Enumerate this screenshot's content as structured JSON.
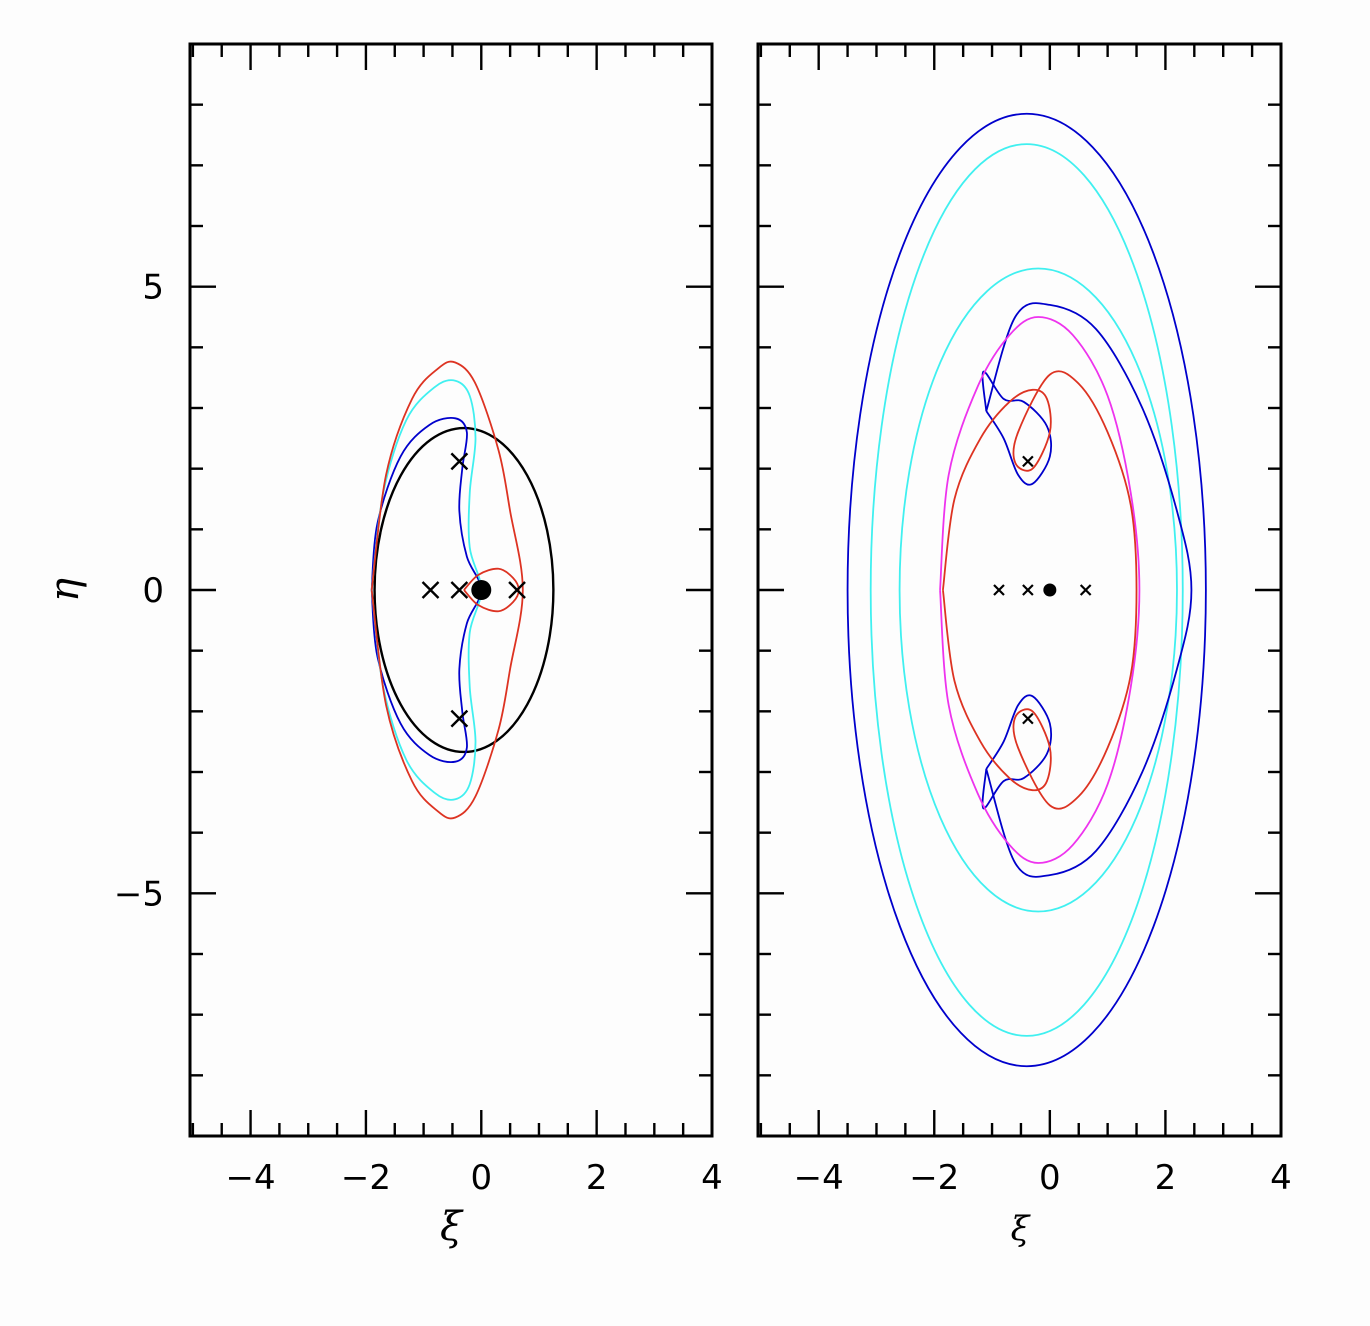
{
  "chart_data": [
    {
      "type": "line",
      "panel": "left",
      "xlabel": "ξ",
      "ylabel": "η",
      "xlim": [
        -5.05,
        4.0
      ],
      "ylim": [
        -9.0,
        9.0
      ],
      "x_ticks": [
        -4,
        -2,
        0,
        2,
        4
      ],
      "x_tick_labels": [
        "−4",
        "−2",
        "0",
        "2",
        "4"
      ],
      "y_ticks": [
        -5,
        0,
        5
      ],
      "y_tick_labels": [
        "−5",
        "0",
        "5"
      ],
      "series": [
        {
          "color": "#000000",
          "kind": "ellipse",
          "center": [
            -0.3,
            0.0
          ],
          "semi_axes": [
            1.55,
            2.67
          ]
        },
        {
          "color": "#0000cc",
          "kind": "critical-curve",
          "points": [
            [
              -1.9,
              0
            ],
            [
              -1.8,
              1.1
            ],
            [
              -1.4,
              2.2
            ],
            [
              -0.9,
              2.72
            ],
            [
              -0.45,
              2.83
            ],
            [
              -0.25,
              2.6
            ],
            [
              -0.33,
              2.0
            ],
            [
              -0.38,
              1.3
            ],
            [
              -0.25,
              0.55
            ],
            [
              0.0,
              0.0
            ],
            [
              -0.25,
              -0.55
            ],
            [
              -0.38,
              -1.3
            ],
            [
              -0.33,
              -2.0
            ],
            [
              -0.25,
              -2.6
            ],
            [
              -0.45,
              -2.83
            ],
            [
              -0.9,
              -2.72
            ],
            [
              -1.4,
              -2.2
            ],
            [
              -1.8,
              -1.1
            ],
            [
              -1.9,
              0
            ]
          ]
        },
        {
          "color": "#40f0f0",
          "kind": "critical-curve",
          "points": [
            [
              -1.9,
              0
            ],
            [
              -1.7,
              1.6
            ],
            [
              -1.3,
              2.8
            ],
            [
              -0.8,
              3.35
            ],
            [
              -0.45,
              3.45
            ],
            [
              -0.2,
              3.2
            ],
            [
              -0.1,
              2.5
            ],
            [
              -0.2,
              1.6
            ],
            [
              -0.2,
              0.7
            ],
            [
              0.0,
              0.0
            ],
            [
              -0.2,
              -0.7
            ],
            [
              -0.2,
              -1.6
            ],
            [
              -0.1,
              -2.5
            ],
            [
              -0.2,
              -3.2
            ],
            [
              -0.45,
              -3.45
            ],
            [
              -0.8,
              -3.35
            ],
            [
              -1.3,
              -2.8
            ],
            [
              -1.7,
              -1.6
            ],
            [
              -1.9,
              0
            ]
          ]
        },
        {
          "color": "#dd3322",
          "kind": "critical-curve",
          "points": [
            [
              -1.9,
              0
            ],
            [
              -1.65,
              1.9
            ],
            [
              -1.2,
              3.15
            ],
            [
              -0.75,
              3.65
            ],
            [
              -0.45,
              3.75
            ],
            [
              -0.1,
              3.4
            ],
            [
              0.3,
              2.3
            ],
            [
              0.5,
              1.3
            ],
            [
              0.72,
              0.0
            ],
            [
              0.5,
              -1.3
            ],
            [
              0.3,
              -2.3
            ],
            [
              -0.1,
              -3.4
            ],
            [
              -0.45,
              -3.75
            ],
            [
              -0.75,
              -3.65
            ],
            [
              -1.2,
              -3.15
            ],
            [
              -1.65,
              -1.9
            ],
            [
              -1.9,
              0
            ]
          ]
        },
        {
          "color": "#dd3322",
          "kind": "small-loop",
          "points": [
            [
              -0.3,
              0
            ],
            [
              -0.05,
              0.25
            ],
            [
              0.3,
              0.35
            ],
            [
              0.55,
              0.2
            ],
            [
              0.65,
              0
            ],
            [
              0.55,
              -0.2
            ],
            [
              0.3,
              -0.35
            ],
            [
              -0.05,
              -0.25
            ],
            [
              -0.3,
              0
            ]
          ]
        }
      ],
      "markers": {
        "crosses": [
          [
            -0.38,
            2.12
          ],
          [
            -0.88,
            0.0
          ],
          [
            -0.38,
            0.0
          ],
          [
            0.62,
            0.0
          ],
          [
            -0.38,
            -2.12
          ]
        ],
        "dots": [
          [
            0.0,
            0.0
          ]
        ]
      }
    },
    {
      "type": "line",
      "panel": "right",
      "xlabel": "ξ",
      "xlim": [
        -5.05,
        4.0
      ],
      "ylim": [
        -9.0,
        9.0
      ],
      "x_ticks": [
        -4,
        -2,
        0,
        2,
        4
      ],
      "x_tick_labels": [
        "−4",
        "−2",
        "0",
        "2",
        "4"
      ],
      "series": [
        {
          "color": "#0000cc",
          "kind": "ellipse",
          "center": [
            -0.4,
            0.0
          ],
          "semi_axes": [
            3.1,
            7.85
          ]
        },
        {
          "color": "#40f0f0",
          "kind": "ellipse",
          "center": [
            -0.4,
            0.0
          ],
          "semi_axes": [
            2.7,
            7.35
          ]
        },
        {
          "color": "#40f0f0",
          "kind": "ellipse",
          "center": [
            -0.2,
            0.0
          ],
          "semi_axes": [
            2.4,
            5.3
          ]
        },
        {
          "color": "#0000cc",
          "kind": "critical-curve",
          "points": [
            [
              -1.1,
              2.95
            ],
            [
              -0.6,
              4.5
            ],
            [
              0.0,
              4.7
            ],
            [
              0.8,
              4.3
            ],
            [
              1.6,
              3.0
            ],
            [
              2.2,
              1.3
            ],
            [
              2.45,
              0
            ],
            [
              2.2,
              -1.3
            ],
            [
              1.6,
              -3.0
            ],
            [
              0.8,
              -4.3
            ],
            [
              0.0,
              -4.7
            ],
            [
              -0.6,
              -4.5
            ],
            [
              -1.1,
              -2.95
            ]
          ]
        },
        {
          "color": "#0000cc",
          "kind": "loop",
          "points": [
            [
              -1.1,
              2.95
            ],
            [
              -1.15,
              3.6
            ],
            [
              -0.8,
              3.15
            ],
            [
              -0.45,
              3.1
            ],
            [
              -0.05,
              2.7
            ],
            [
              0.0,
              2.2
            ],
            [
              -0.3,
              1.75
            ],
            [
              -0.55,
              1.9
            ],
            [
              -0.8,
              2.5
            ],
            [
              -1.1,
              2.95
            ]
          ]
        },
        {
          "color": "#0000cc",
          "kind": "loop",
          "points": [
            [
              -1.1,
              -2.95
            ],
            [
              -1.15,
              -3.6
            ],
            [
              -0.8,
              -3.15
            ],
            [
              -0.45,
              -3.1
            ],
            [
              -0.05,
              -2.7
            ],
            [
              0.0,
              -2.2
            ],
            [
              -0.3,
              -1.75
            ],
            [
              -0.55,
              -1.9
            ],
            [
              -0.8,
              -2.5
            ],
            [
              -1.1,
              -2.95
            ]
          ]
        },
        {
          "color": "#ee33ee",
          "kind": "critical-curve",
          "points": [
            [
              -1.9,
              0
            ],
            [
              -1.75,
              1.9
            ],
            [
              -1.25,
              3.35
            ],
            [
              -0.7,
              4.2
            ],
            [
              -0.2,
              4.5
            ],
            [
              0.4,
              4.2
            ],
            [
              1.0,
              3.2
            ],
            [
              1.4,
              1.6
            ],
            [
              1.55,
              0
            ],
            [
              1.4,
              -1.6
            ],
            [
              1.0,
              -3.2
            ],
            [
              0.4,
              -4.2
            ],
            [
              -0.2,
              -4.5
            ],
            [
              -0.7,
              -4.2
            ],
            [
              -1.25,
              -3.35
            ],
            [
              -1.75,
              -1.9
            ],
            [
              -1.9,
              0
            ]
          ]
        },
        {
          "color": "#dd3322",
          "kind": "critical-curve",
          "points": [
            [
              -1.85,
              0
            ],
            [
              -1.65,
              1.5
            ],
            [
              -1.2,
              2.5
            ],
            [
              -0.7,
              3.1
            ],
            [
              -0.3,
              3.3
            ],
            [
              -0.05,
              3.15
            ],
            [
              0.0,
              2.6
            ],
            [
              -0.3,
              2.0
            ],
            [
              -0.6,
              2.1
            ],
            [
              -0.55,
              2.6
            ],
            [
              0.0,
              3.55
            ],
            [
              0.5,
              3.4
            ],
            [
              1.0,
              2.6
            ],
            [
              1.4,
              1.4
            ],
            [
              1.5,
              0
            ],
            [
              1.4,
              -1.4
            ],
            [
              1.0,
              -2.6
            ],
            [
              0.5,
              -3.4
            ],
            [
              0.0,
              -3.55
            ],
            [
              -0.55,
              -2.6
            ],
            [
              -0.6,
              -2.1
            ],
            [
              -0.3,
              -2.0
            ],
            [
              0.0,
              -2.6
            ],
            [
              -0.05,
              -3.15
            ],
            [
              -0.3,
              -3.3
            ],
            [
              -0.7,
              -3.1
            ],
            [
              -1.2,
              -2.5
            ],
            [
              -1.65,
              -1.5
            ],
            [
              -1.85,
              0
            ]
          ]
        }
      ],
      "markers": {
        "crosses": [
          [
            -0.38,
            2.12
          ],
          [
            -0.88,
            0.0
          ],
          [
            -0.38,
            0.0
          ],
          [
            0.62,
            0.0
          ],
          [
            -0.38,
            -2.12
          ]
        ],
        "dots": [
          [
            0.0,
            0.0
          ]
        ]
      }
    }
  ]
}
